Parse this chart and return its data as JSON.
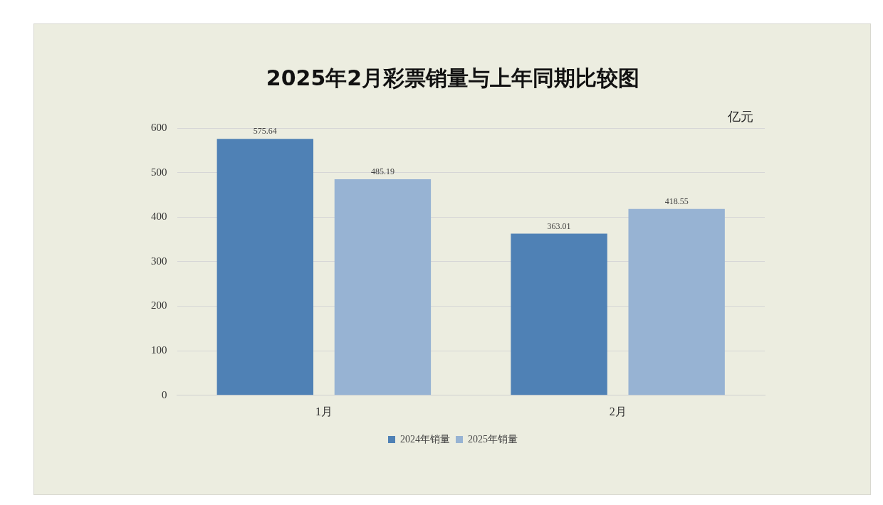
{
  "chart_data": {
    "type": "bar",
    "title": "2025年2月彩票销量与上年同期比较图",
    "ylabel": "亿元",
    "categories": [
      "1月",
      "2月"
    ],
    "series": [
      {
        "name": "2024年销量",
        "color": "#4f81b5",
        "values": [
          575.64,
          363.01
        ]
      },
      {
        "name": "2025年销量",
        "color": "#97b3d3",
        "values": [
          485.19,
          418.55
        ]
      }
    ],
    "ylim": [
      0,
      600
    ],
    "yticks": [
      0,
      100,
      200,
      300,
      400,
      500,
      600
    ],
    "grid": "y",
    "legend": "bottom",
    "data_labels": true
  }
}
